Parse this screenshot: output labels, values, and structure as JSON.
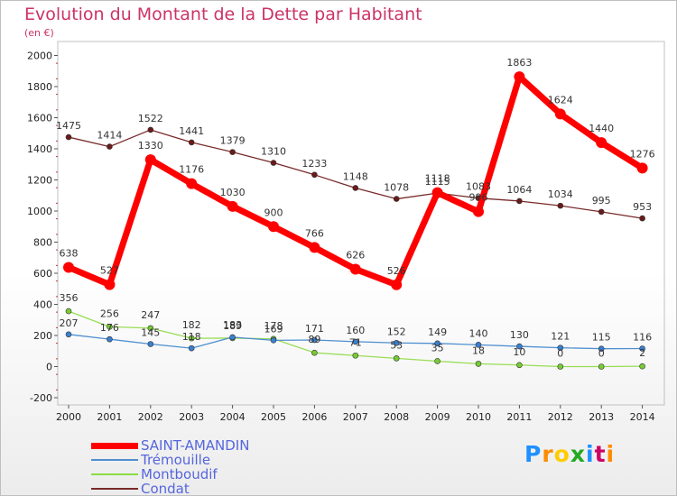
{
  "title": "Evolution du Montant de la Dette par Habitant",
  "subtitle": "(en €)",
  "logo": {
    "text": "Proxiti",
    "colors": [
      "#1e90ff",
      "#ff8c00",
      "#ffcc00",
      "#22aa22",
      "#1e90ff",
      "#cc0066",
      "#ff8c00"
    ]
  },
  "chart_data": {
    "type": "line",
    "title": "Evolution du Montant de la Dette par Habitant",
    "subtitle": "(en €)",
    "xlabel": "",
    "ylabel": "",
    "x": [
      "2000",
      "2001",
      "2002",
      "2003",
      "2004",
      "2005",
      "2006",
      "2007",
      "2008",
      "2009",
      "2010",
      "2011",
      "2012",
      "2013",
      "2014"
    ],
    "yticks": [
      -200,
      0,
      200,
      400,
      600,
      800,
      1000,
      1200,
      1400,
      1600,
      1800,
      2000
    ],
    "ylim": [
      -200,
      2000
    ],
    "grid": false,
    "legend_position": "bottom-left",
    "series": [
      {
        "name": "SAINT-AMANDIN",
        "color": "#ff0000",
        "values": [
          638,
          527,
          1330,
          1176,
          1030,
          900,
          766,
          626,
          526,
          1118,
          996,
          1863,
          1624,
          1440,
          1276
        ],
        "labels": [
          "638",
          "527",
          "1330",
          "1176",
          "1030",
          "900",
          "766",
          "626",
          "526",
          "1118",
          "996",
          "1863",
          "1624",
          "1440",
          "1276"
        ]
      },
      {
        "name": "Trémouille",
        "color": "#4f8fcf",
        "values": [
          207,
          176,
          145,
          118,
          189,
          169,
          171,
          160,
          152,
          149,
          140,
          130,
          121,
          115,
          116
        ],
        "labels": [
          "207",
          "176",
          "145",
          "118",
          "189",
          "169",
          "171",
          "160",
          "152",
          "149",
          "140",
          "130",
          "121",
          "115",
          "116"
        ]
      },
      {
        "name": "Montboudif",
        "color": "#88dd44",
        "values": [
          356,
          256,
          247,
          182,
          183,
          178,
          89,
          71,
          53,
          35,
          18,
          10,
          0,
          0,
          2
        ],
        "labels": [
          "356",
          "256",
          "247",
          "182",
          "183",
          "178",
          "89",
          "71",
          "53",
          "35",
          "18",
          "10",
          "0",
          "0",
          "2"
        ]
      },
      {
        "name": "Condat",
        "color": "#7a2a2a",
        "values": [
          1475,
          1414,
          1522,
          1441,
          1379,
          1310,
          1233,
          1148,
          1078,
          1115,
          1083,
          1064,
          1034,
          995,
          953
        ],
        "labels": [
          "1475",
          "1414",
          "1522",
          "1441",
          "1379",
          "1310",
          "1233",
          "1148",
          "1078",
          "1115",
          "1083",
          "1064",
          "1034",
          "995",
          "953"
        ]
      }
    ]
  }
}
